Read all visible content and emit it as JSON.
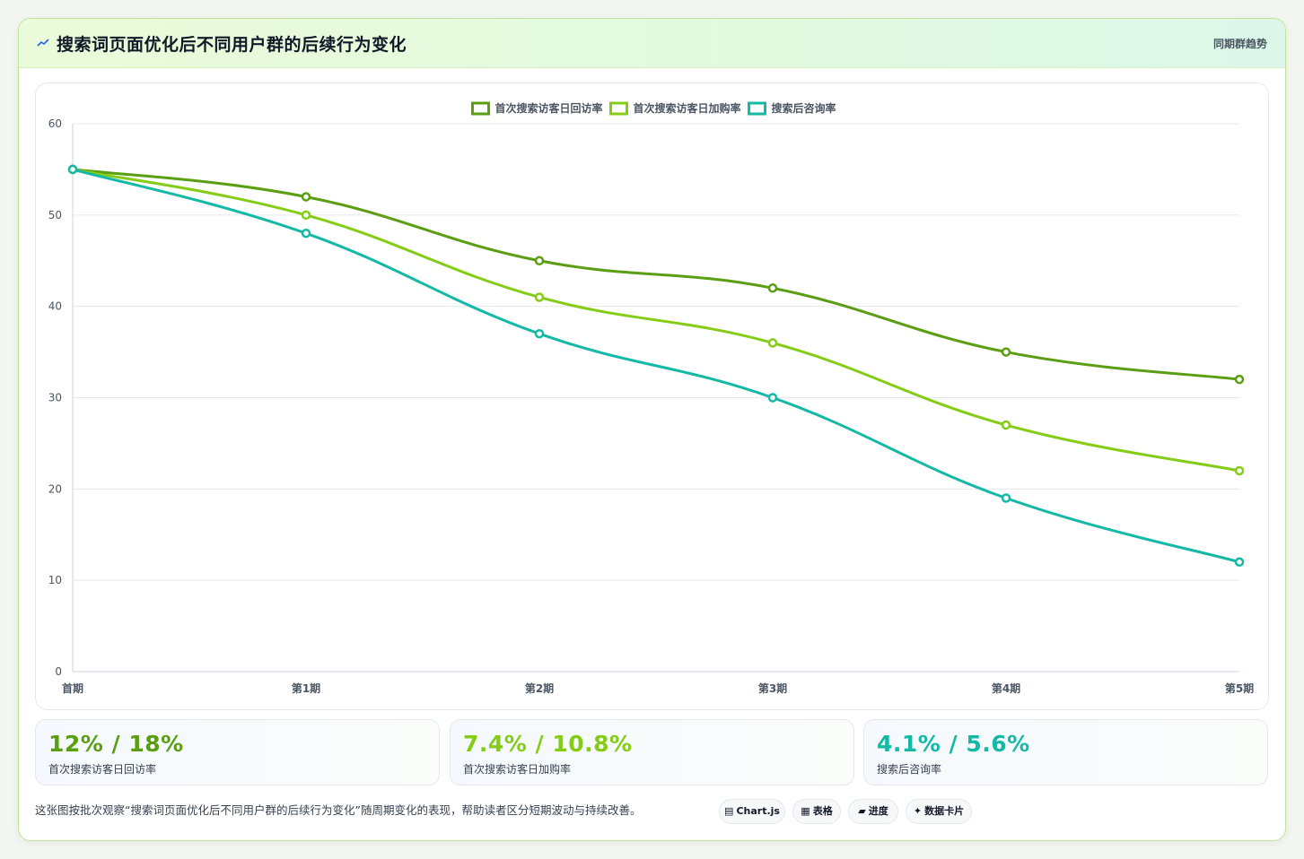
{
  "header": {
    "title": "搜索词页面优化后不同用户群的后续行为变化",
    "tag": "同期群趋势"
  },
  "chart_data": {
    "type": "line",
    "categories": [
      "首期",
      "第1期",
      "第2期",
      "第3期",
      "第4期",
      "第5期"
    ],
    "series": [
      {
        "name": "首次搜索访客日回访率",
        "color": "#5a9e12",
        "values": [
          55,
          52,
          45,
          42,
          35,
          32
        ]
      },
      {
        "name": "首次搜索访客日加购率",
        "color": "#84cc16",
        "values": [
          55,
          50,
          41,
          36,
          27,
          22
        ]
      },
      {
        "name": "搜索后咨询率",
        "color": "#14b8a6",
        "values": [
          55,
          48,
          37,
          30,
          19,
          12
        ]
      }
    ],
    "yticks": [
      0,
      10,
      20,
      30,
      40,
      50,
      60
    ],
    "ylim": [
      0,
      60
    ],
    "grid": true,
    "legend": "top-center"
  },
  "stats": [
    {
      "value": "12% / 18%",
      "label": "首次搜索访客日回访率",
      "color": "#5a9e12"
    },
    {
      "value": "7.4% / 10.8%",
      "label": "首次搜索访客日加购率",
      "color": "#84cc16"
    },
    {
      "value": "4.1% / 5.6%",
      "label": "搜索后咨询率",
      "color": "#14b8a6"
    }
  ],
  "footer": {
    "text": "这张图按批次观察“搜索词页面优化后不同用户群的后续行为变化”随周期变化的表现，帮助读者区分短期波动与持续改善。"
  },
  "pills": [
    {
      "glyph": "▤",
      "label": "Chart.js"
    },
    {
      "glyph": "▦",
      "label": "表格"
    },
    {
      "glyph": "▰",
      "label": "进度"
    },
    {
      "glyph": "✦",
      "label": "数据卡片"
    }
  ]
}
